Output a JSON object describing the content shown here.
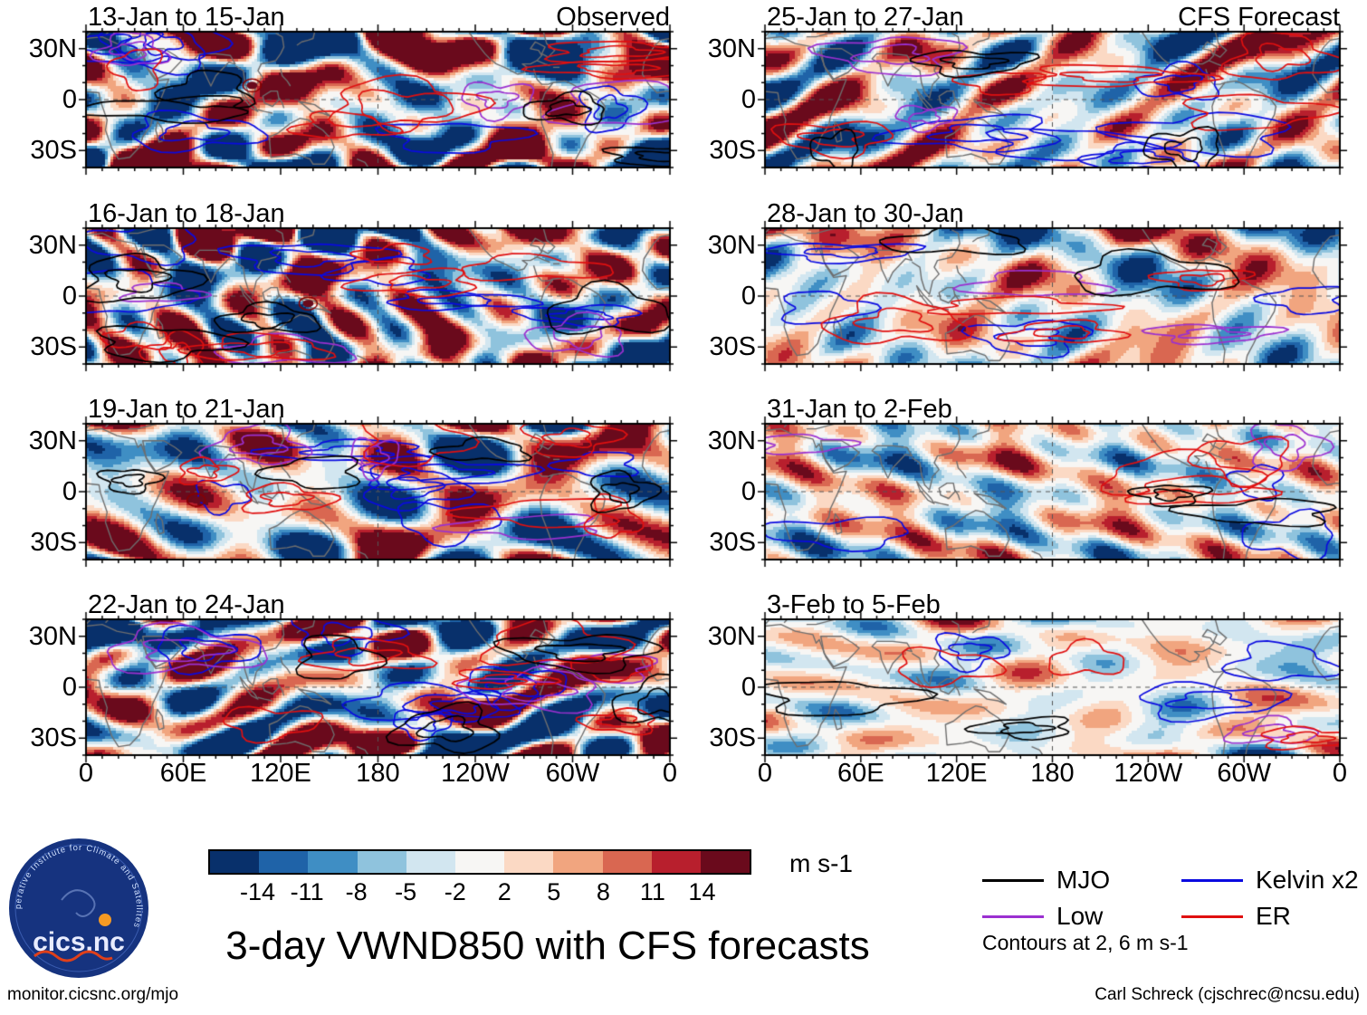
{
  "title": "3-day VWND850 with CFS forecasts",
  "panels": [
    {
      "title": "13-Jan to 15-Jan",
      "corner": "Observed"
    },
    {
      "title": "25-Jan to 27-Jan",
      "corner": "CFS Forecast"
    },
    {
      "title": "16-Jan to 18-Jan",
      "corner": ""
    },
    {
      "title": "28-Jan to 30-Jan",
      "corner": ""
    },
    {
      "title": "19-Jan to 21-Jan",
      "corner": ""
    },
    {
      "title": "31-Jan to 2-Feb",
      "corner": ""
    },
    {
      "title": "22-Jan to 24-Jan",
      "corner": ""
    },
    {
      "title": "3-Feb to 5-Feb",
      "corner": ""
    }
  ],
  "axes": {
    "lat": [
      "30N",
      "0",
      "30S"
    ],
    "lon": [
      "0",
      "60E",
      "120E",
      "180",
      "120W",
      "60W",
      "0"
    ]
  },
  "colorbar": {
    "ticks": [
      "-14",
      "-11",
      "-8",
      "-5",
      "-2",
      "2",
      "5",
      "8",
      "11",
      "14"
    ],
    "colors": [
      "#08306b",
      "#1f63a8",
      "#3f8ec4",
      "#8fc3dd",
      "#d2e6f0",
      "#f7f6f4",
      "#fbd9c4",
      "#f1a57f",
      "#d96751",
      "#b81f2d",
      "#6a0a1c"
    ],
    "unit": "m s-1"
  },
  "legend": {
    "items": [
      {
        "label": "MJO",
        "color": "#000000"
      },
      {
        "label": "Kelvin x2",
        "color": "#0a0ae0"
      },
      {
        "label": "Low",
        "color": "#9b30d0"
      },
      {
        "label": "ER",
        "color": "#e01010"
      }
    ],
    "note": "Contours at 2, 6 m s-1"
  },
  "footer": {
    "left": "monitor.cicsnc.org/mjo",
    "right": "Carl Schreck (cjschrec@ncsu.edu)"
  },
  "logo": {
    "name": "cics.nc",
    "ring": "Cooperative Institute for Climate and Satellites"
  },
  "chart_data": {
    "type": "heatmap",
    "variable": "VWND850",
    "title": "3-day VWND850 with CFS forecasts",
    "columns": [
      {
        "label": "Observed",
        "panels": [
          "13-Jan to 15-Jan",
          "16-Jan to 18-Jan",
          "19-Jan to 21-Jan",
          "22-Jan to 24-Jan"
        ]
      },
      {
        "label": "CFS Forecast",
        "panels": [
          "25-Jan to 27-Jan",
          "28-Jan to 30-Jan",
          "31-Jan to 2-Feb",
          "3-Feb to 5-Feb"
        ]
      }
    ],
    "lat_tick_labels": [
      "30N",
      "0",
      "30S"
    ],
    "lon_tick_labels": [
      "0",
      "60E",
      "120E",
      "180",
      "120W",
      "60W",
      "0"
    ],
    "lat_range_deg": [
      -40,
      40
    ],
    "lon_range_deg": [
      0,
      360
    ],
    "shading_unit": "m s-1",
    "shading_levels": [
      -14,
      -11,
      -8,
      -5,
      -2,
      2,
      5,
      8,
      11,
      14
    ],
    "shading_colors": [
      "#08306b",
      "#1f63a8",
      "#3f8ec4",
      "#8fc3dd",
      "#d2e6f0",
      "#f7f6f4",
      "#fbd9c4",
      "#f1a57f",
      "#d96751",
      "#b81f2d",
      "#6a0a1c"
    ],
    "contour_levels": [
      2,
      6
    ],
    "contour_series": [
      {
        "name": "MJO",
        "color": "#000000"
      },
      {
        "name": "Kelvin x2",
        "color": "#0a0ae0"
      },
      {
        "name": "Low",
        "color": "#9b30d0"
      },
      {
        "name": "ER",
        "color": "#e01010"
      }
    ],
    "legend_position": "bottom-right",
    "grid": "dashed reference lines at equator and 180"
  }
}
